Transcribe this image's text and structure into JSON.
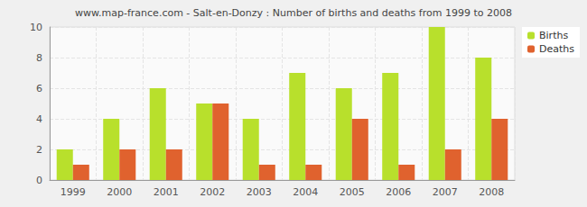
{
  "chart_data": {
    "type": "bar",
    "title": "www.map-france.com - Salt-en-Donzy : Number of births and deaths from 1999 to 2008",
    "categories": [
      "1999",
      "2000",
      "2001",
      "2002",
      "2003",
      "2004",
      "2005",
      "2006",
      "2007",
      "2008"
    ],
    "series": [
      {
        "name": "Births",
        "color": "#b8e02c",
        "values": [
          2,
          4,
          6,
          5,
          4,
          7,
          6,
          7,
          10,
          8
        ]
      },
      {
        "name": "Deaths",
        "color": "#e0622e",
        "values": [
          1,
          2,
          2,
          5,
          1,
          1,
          4,
          1,
          2,
          4
        ]
      }
    ],
    "ylim": [
      0,
      10
    ],
    "yticks": [
      0,
      2,
      4,
      6,
      8,
      10
    ],
    "grid": true,
    "legend": "upper right"
  }
}
